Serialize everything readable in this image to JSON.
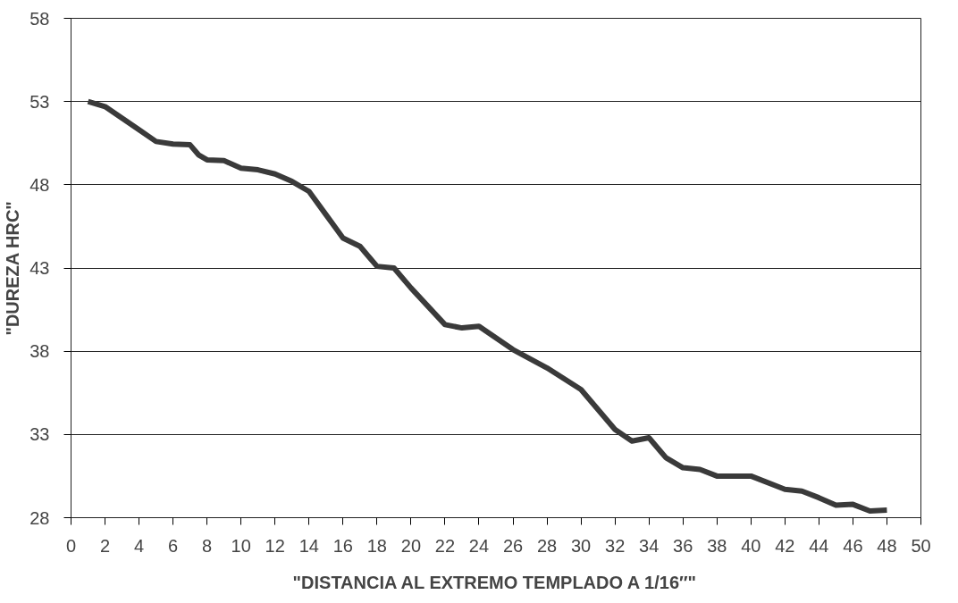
{
  "chart_data": {
    "type": "line",
    "xlabel": "\"DISTANCIA AL EXTREMO TEMPLADO A 1/16″\"",
    "ylabel": "\"DUREZA HRC\"",
    "x": [
      1,
      2,
      3,
      4,
      5,
      6,
      7,
      7.5,
      8,
      9,
      10,
      11,
      12,
      13,
      14,
      15,
      16,
      17,
      17.5,
      18,
      19,
      20,
      22,
      23,
      24,
      26,
      28,
      30,
      32,
      33,
      34,
      35,
      36,
      37,
      38,
      40,
      42,
      43,
      44,
      45,
      46,
      47,
      48
    ],
    "series": [
      {
        "color": "#3a3a3a",
        "values": [
          53.0,
          52.7,
          52.0,
          51.3,
          50.6,
          50.45,
          50.4,
          49.8,
          49.5,
          49.45,
          49.0,
          48.9,
          48.65,
          48.2,
          47.6,
          46.2,
          44.8,
          44.3,
          43.7,
          43.1,
          43.0,
          41.8,
          39.6,
          39.4,
          39.5,
          38.1,
          37.0,
          35.7,
          33.3,
          32.6,
          32.8,
          31.6,
          31.0,
          30.9,
          30.5,
          30.5,
          29.7,
          29.6,
          29.2,
          28.75,
          28.8,
          28.4,
          28.45
        ]
      }
    ],
    "xlim": [
      0,
      50
    ],
    "xticks": [
      0,
      2,
      4,
      6,
      8,
      10,
      12,
      14,
      16,
      18,
      20,
      22,
      24,
      26,
      28,
      30,
      32,
      34,
      36,
      38,
      40,
      42,
      44,
      46,
      48,
      50
    ],
    "ylim": [
      28,
      58
    ],
    "yticks": [
      28,
      33,
      38,
      43,
      48,
      53,
      58
    ],
    "grid": "y",
    "marker": "none",
    "line_style": "solid"
  }
}
